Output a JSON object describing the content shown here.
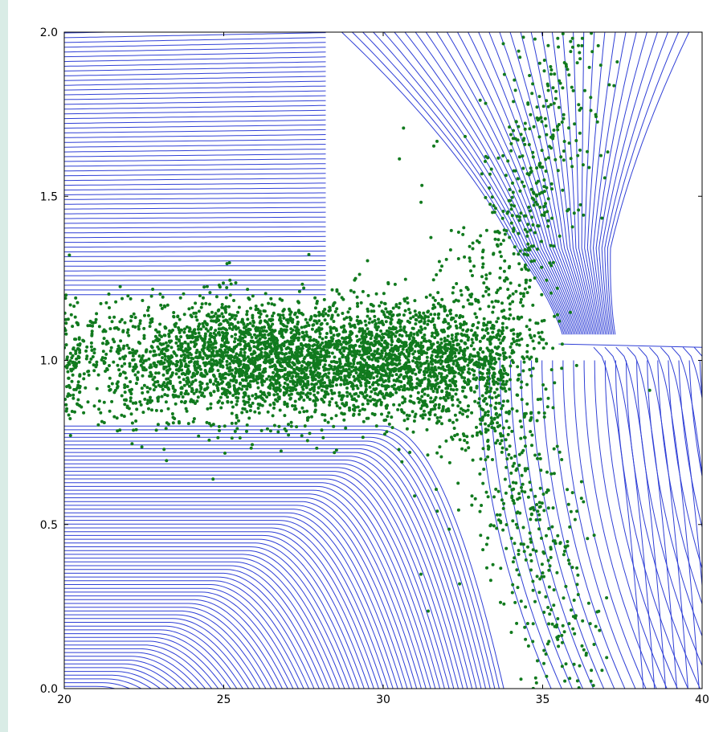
{
  "colors": {
    "page_background": "#d9ece6",
    "figure_background": "#ffffff",
    "streamline": "#2f3fd6",
    "scatter": "#117a1e",
    "axes": "#000000"
  },
  "chart_data": {
    "type": "scatter",
    "title": "",
    "xlabel": "",
    "ylabel": "",
    "xlim": [
      20,
      40
    ],
    "ylim": [
      0.0,
      2.0
    ],
    "grid": false,
    "legend": "none",
    "x_ticks": [
      20,
      25,
      30,
      35,
      40
    ],
    "y_ticks": [
      0.0,
      0.5,
      1.0,
      1.5,
      2.0
    ],
    "x_tick_labels": [
      "20",
      "25",
      "30",
      "35",
      "40"
    ],
    "y_tick_labels": [
      "0.0",
      "0.5",
      "1.0",
      "1.5",
      "2.0"
    ],
    "layers": [
      {
        "kind": "streamplot",
        "color": "#2f3fd6",
        "description_values": {
          "fixed_point": [
            36.2,
            1.05
          ]
        }
      },
      {
        "kind": "scatter",
        "color": "#117a1e",
        "clusters": [
          {
            "center": [
              26.5,
              1.0
            ],
            "spread": [
              3.2,
              0.09
            ],
            "count": 3200
          },
          {
            "center": [
              31.5,
              1.0
            ],
            "spread": [
              1.6,
              0.1
            ],
            "count": 900
          },
          {
            "center": [
              34.5,
              1.45
            ],
            "spread": [
              1.3,
              0.25
            ],
            "count": 550,
            "slope": 0.25
          },
          {
            "center": [
              34.5,
              0.55
            ],
            "spread": [
              1.3,
              0.25
            ],
            "count": 500,
            "slope": -0.25
          }
        ]
      }
    ]
  }
}
